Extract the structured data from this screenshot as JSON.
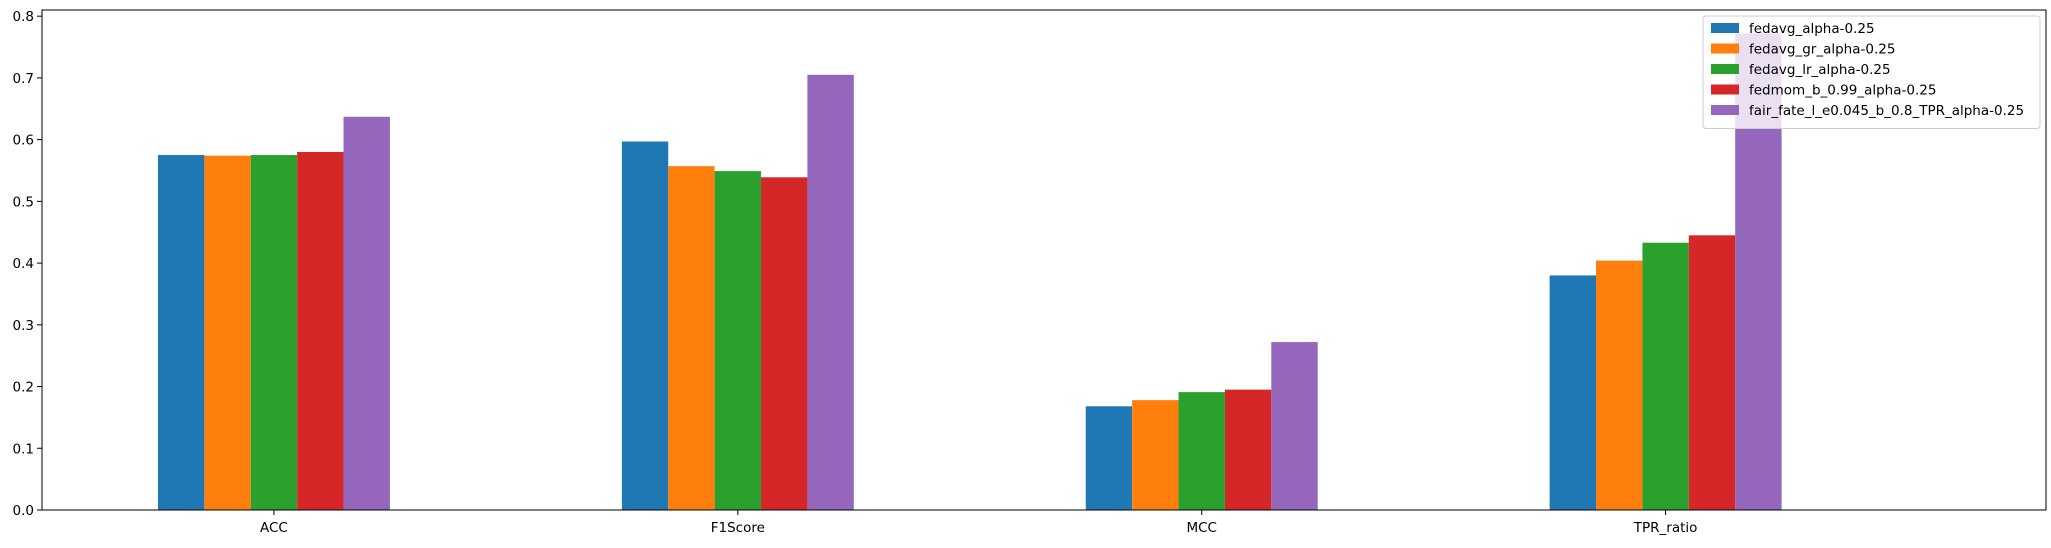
{
  "chart_data": {
    "type": "bar",
    "title": "",
    "xlabel": "",
    "ylabel": "",
    "categories": [
      "ACC",
      "F1Score",
      "MCC",
      "TPR_ratio"
    ],
    "ylim": [
      0,
      0.81
    ],
    "yticks": [
      0.0,
      0.1,
      0.2,
      0.3,
      0.4,
      0.5,
      0.6,
      0.7,
      0.8
    ],
    "ytick_labels": [
      "0.0",
      "0.1",
      "0.2",
      "0.3",
      "0.4",
      "0.5",
      "0.6",
      "0.7",
      "0.8"
    ],
    "grid": false,
    "legend_position": "top-right",
    "series": [
      {
        "name": "fedavg_alpha-0.25",
        "color": "#1f77b4",
        "values": [
          0.575,
          0.597,
          0.168,
          0.38
        ]
      },
      {
        "name": "fedavg_gr_alpha-0.25",
        "color": "#ff7f0e",
        "values": [
          0.574,
          0.557,
          0.178,
          0.404
        ]
      },
      {
        "name": "fedavg_lr_alpha-0.25",
        "color": "#2ca02c",
        "values": [
          0.575,
          0.549,
          0.191,
          0.433
        ]
      },
      {
        "name": "fedmom_b_0.99_alpha-0.25",
        "color": "#d62728",
        "values": [
          0.58,
          0.539,
          0.195,
          0.445
        ]
      },
      {
        "name": "fair_fate_l_e0.045_b_0.8_TPR_alpha-0.25",
        "color": "#9467bd",
        "values": [
          0.637,
          0.705,
          0.272,
          0.772
        ]
      }
    ]
  }
}
